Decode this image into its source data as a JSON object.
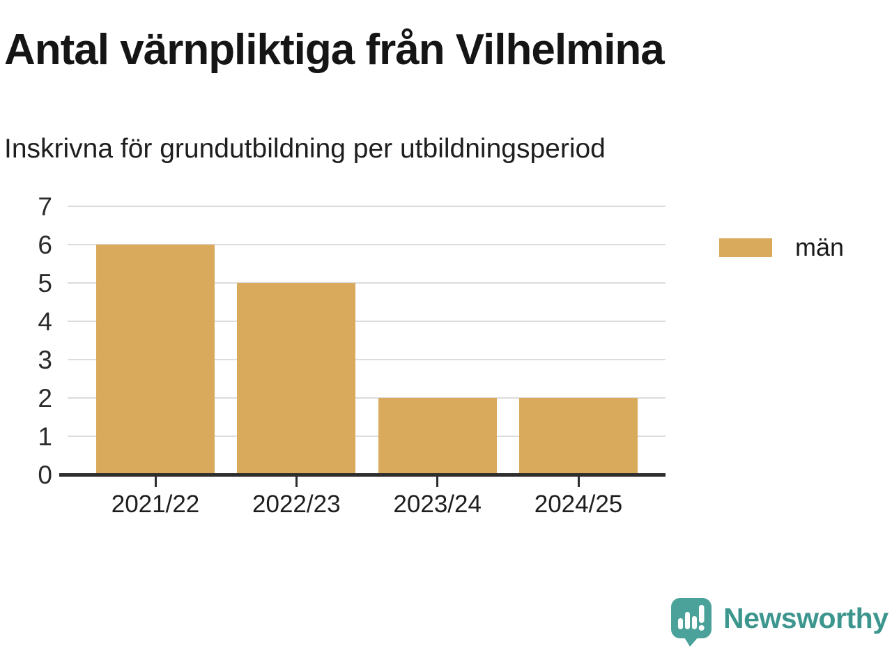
{
  "chart_data": {
    "type": "bar",
    "title": "Antal värnpliktiga från Vilhelmina",
    "subtitle": "Inskrivna för grundutbildning per utbildningsperiod",
    "categories": [
      "2021/22",
      "2022/23",
      "2023/24",
      "2024/25"
    ],
    "series": [
      {
        "name": "män",
        "values": [
          6,
          5,
          2,
          2
        ]
      }
    ],
    "xlabel": "",
    "ylabel": "",
    "ylim": [
      0,
      7
    ],
    "yticks": [
      0,
      1,
      2,
      3,
      4,
      5,
      6,
      7
    ],
    "grid": true,
    "legend_position": "right"
  },
  "colors": {
    "bar": "#D9A95C",
    "axis": "#2E2E2E",
    "grid": "#DCDCDC",
    "tick_text": "#2B2B2B",
    "brand_teal": "#3D968E",
    "icon_teal": "#4AA29A",
    "background": "#FFFFFF"
  },
  "branding": {
    "name": "Newsworthy"
  },
  "icons": {
    "logo": "newsworthy-speech-bubble-bar-chart-icon"
  }
}
